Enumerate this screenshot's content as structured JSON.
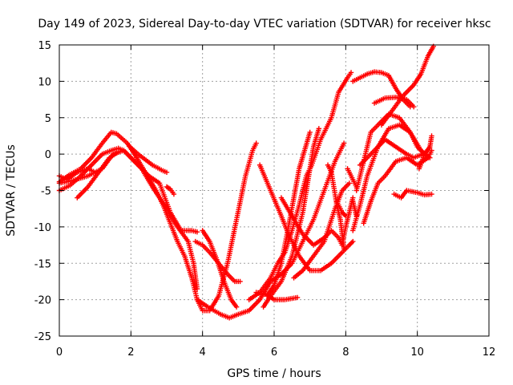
{
  "chart_data": {
    "type": "scatter",
    "title": "Day 149 of 2023, Sidereal Day-to-day VTEC variation (SDTVAR) for receiver hksc",
    "xlabel": "GPS time / hours",
    "ylabel": "SDTVAR / TECUs",
    "xlim": [
      0,
      12
    ],
    "ylim": [
      -25,
      15
    ],
    "xticks": [
      "0",
      "2",
      "4",
      "6",
      "8",
      "10",
      "12"
    ],
    "yticks": [
      "15",
      "10",
      "5",
      "0",
      "-5",
      "-10",
      "-15",
      "-20",
      "-25"
    ],
    "grid": true,
    "marker": "+",
    "color": "#ff0000",
    "series": [
      {
        "points": [
          [
            0,
            -5
          ],
          [
            0.3,
            -4.3
          ],
          [
            0.6,
            -3
          ],
          [
            0.9,
            -1.5
          ],
          [
            1.2,
            0
          ],
          [
            1.45,
            0.5
          ],
          [
            1.65,
            0.8
          ],
          [
            1.8,
            0.5
          ],
          [
            2.0,
            -0.5
          ],
          [
            2.3,
            -2
          ],
          [
            2.6,
            -4.5
          ],
          [
            2.8,
            -6
          ],
          [
            3.0,
            -7.5
          ],
          [
            3.3,
            -10
          ],
          [
            3.6,
            -12
          ],
          [
            3.75,
            -15
          ],
          [
            3.85,
            -18.5
          ]
        ]
      },
      {
        "points": [
          [
            0,
            -3.8
          ],
          [
            0.3,
            -2.8
          ],
          [
            0.6,
            -2
          ],
          [
            0.9,
            -0.5
          ],
          [
            1.2,
            1.5
          ],
          [
            1.45,
            3
          ],
          [
            1.6,
            2.8
          ],
          [
            1.9,
            1.5
          ],
          [
            2.1,
            0
          ],
          [
            2.4,
            -2.5
          ],
          [
            2.7,
            -5
          ],
          [
            2.9,
            -7
          ],
          [
            3.1,
            -9.5
          ],
          [
            3.3,
            -12
          ],
          [
            3.5,
            -14
          ],
          [
            3.7,
            -17
          ],
          [
            3.85,
            -20
          ],
          [
            4.0,
            -21.5
          ],
          [
            4.2,
            -21.5
          ],
          [
            4.45,
            -19.5
          ],
          [
            4.7,
            -15
          ],
          [
            4.95,
            -9
          ],
          [
            5.2,
            -3
          ],
          [
            5.4,
            0.5
          ],
          [
            5.5,
            1.5
          ]
        ]
      },
      {
        "points": [
          [
            0,
            -4
          ],
          [
            0.4,
            -3.6
          ],
          [
            0.8,
            -3
          ],
          [
            1.2,
            -2
          ],
          [
            1.5,
            0
          ],
          [
            1.8,
            0.5
          ],
          [
            2.1,
            -1
          ],
          [
            2.5,
            -3
          ],
          [
            2.8,
            -4
          ],
          [
            3.1,
            -8
          ],
          [
            3.4,
            -10.5
          ],
          [
            3.7,
            -10.5
          ],
          [
            3.85,
            -10.7
          ]
        ]
      },
      {
        "points": [
          [
            0,
            -3
          ],
          [
            0.2,
            -3.5
          ],
          [
            0.5,
            -2.5
          ],
          [
            0.8,
            -2
          ],
          [
            1.0,
            -2.5
          ]
        ]
      },
      {
        "points": [
          [
            0.5,
            -6
          ],
          [
            0.8,
            -4.5
          ],
          [
            1.1,
            -2.5
          ],
          [
            1.4,
            -0.5
          ],
          [
            1.65,
            0.3
          ]
        ]
      },
      {
        "points": [
          [
            1.95,
            1.1
          ],
          [
            2.2,
            0
          ],
          [
            2.6,
            -1.5
          ],
          [
            2.9,
            -2.3
          ],
          [
            3.0,
            -2.5
          ]
        ]
      },
      {
        "points": [
          [
            3.0,
            -4.5
          ],
          [
            3.1,
            -4.8
          ],
          [
            3.2,
            -5.5
          ]
        ]
      },
      {
        "points": [
          [
            3.8,
            -12
          ],
          [
            4.0,
            -12.5
          ],
          [
            4.2,
            -13.5
          ],
          [
            4.45,
            -15
          ],
          [
            4.7,
            -16.5
          ],
          [
            4.9,
            -17.5
          ],
          [
            5.05,
            -17.5
          ]
        ]
      },
      {
        "points": [
          [
            4.0,
            -10.5
          ],
          [
            4.2,
            -12
          ],
          [
            4.4,
            -14.5
          ],
          [
            4.6,
            -17.5
          ],
          [
            4.8,
            -20
          ],
          [
            4.95,
            -21
          ]
        ]
      },
      {
        "points": [
          [
            3.85,
            -20
          ],
          [
            4.15,
            -21
          ],
          [
            4.5,
            -22
          ],
          [
            4.75,
            -22.5
          ],
          [
            5.0,
            -22
          ],
          [
            5.3,
            -21.5
          ],
          [
            5.6,
            -20
          ],
          [
            5.9,
            -17.5
          ],
          [
            6.2,
            -16.5
          ],
          [
            6.5,
            -15
          ],
          [
            6.8,
            -12
          ],
          [
            7.1,
            -9
          ],
          [
            7.4,
            -5
          ],
          [
            7.7,
            -1
          ],
          [
            7.95,
            1.5
          ]
        ]
      },
      {
        "points": [
          [
            5.3,
            -20
          ],
          [
            5.6,
            -19
          ],
          [
            5.9,
            -17
          ],
          [
            6.1,
            -15
          ],
          [
            6.3,
            -13.5
          ],
          [
            6.5,
            -10.5
          ],
          [
            6.7,
            -7
          ],
          [
            6.9,
            -3
          ],
          [
            7.05,
            -1.5
          ],
          [
            7.3,
            2
          ],
          [
            7.6,
            5
          ],
          [
            7.8,
            8.5
          ],
          [
            8.05,
            10.5
          ],
          [
            8.15,
            11.2
          ]
        ]
      },
      {
        "points": [
          [
            5.7,
            -21
          ],
          [
            5.9,
            -19.5
          ],
          [
            6.2,
            -17.5
          ],
          [
            6.5,
            -14
          ],
          [
            6.8,
            -8
          ],
          [
            7.0,
            -2
          ],
          [
            7.1,
            1
          ],
          [
            7.25,
            3.5
          ]
        ]
      },
      {
        "points": [
          [
            5.8,
            -19.5
          ],
          [
            6.0,
            -18
          ],
          [
            6.2,
            -15
          ],
          [
            6.4,
            -10
          ],
          [
            6.55,
            -6
          ],
          [
            6.7,
            -2
          ],
          [
            6.85,
            0.5
          ],
          [
            7.0,
            3
          ]
        ]
      },
      {
        "points": [
          [
            5.5,
            -19
          ],
          [
            5.8,
            -19.3
          ],
          [
            6.0,
            -20
          ],
          [
            6.3,
            -20
          ],
          [
            6.65,
            -19.7
          ]
        ]
      },
      {
        "points": [
          [
            5.6,
            -1.5
          ],
          [
            5.9,
            -5
          ],
          [
            6.2,
            -8.5
          ],
          [
            6.4,
            -11
          ],
          [
            6.7,
            -14
          ],
          [
            7.0,
            -16
          ],
          [
            7.3,
            -16
          ],
          [
            7.6,
            -15
          ],
          [
            7.9,
            -13.5
          ],
          [
            8.1,
            -12.5
          ],
          [
            8.2,
            -12
          ]
        ]
      },
      {
        "points": [
          [
            6.2,
            -6
          ],
          [
            6.5,
            -8.5
          ],
          [
            6.8,
            -11
          ],
          [
            7.1,
            -12.5
          ],
          [
            7.4,
            -11.5
          ],
          [
            7.6,
            -10.5
          ],
          [
            7.8,
            -11.5
          ],
          [
            7.9,
            -12.5
          ]
        ]
      },
      {
        "points": [
          [
            6.55,
            -17
          ],
          [
            6.8,
            -16
          ],
          [
            7.1,
            -14
          ],
          [
            7.4,
            -12
          ],
          [
            7.7,
            -7.5
          ],
          [
            7.9,
            -5
          ],
          [
            8.1,
            -4
          ]
        ]
      },
      {
        "points": [
          [
            7.5,
            -1.5
          ],
          [
            7.6,
            -2.5
          ],
          [
            7.75,
            -7
          ],
          [
            7.85,
            -9
          ],
          [
            7.95,
            -13
          ]
        ]
      },
      {
        "points": [
          [
            7.75,
            -6.5
          ],
          [
            7.9,
            -8
          ],
          [
            8.0,
            -8.5
          ]
        ]
      },
      {
        "points": [
          [
            7.9,
            -12.5
          ],
          [
            8.0,
            -10
          ],
          [
            8.1,
            -8
          ],
          [
            8.2,
            -6
          ]
        ]
      },
      {
        "points": [
          [
            8.2,
            -6.5
          ],
          [
            8.3,
            -8.5
          ]
        ]
      },
      {
        "points": [
          [
            8.2,
            10
          ],
          [
            8.4,
            10.5
          ],
          [
            8.6,
            11
          ],
          [
            8.8,
            11.3
          ],
          [
            9.0,
            11.2
          ],
          [
            9.2,
            10.8
          ],
          [
            9.4,
            9
          ],
          [
            9.6,
            7.5
          ],
          [
            9.8,
            6.5
          ]
        ]
      },
      {
        "points": [
          [
            8.05,
            -2
          ],
          [
            8.2,
            -3.5
          ],
          [
            8.3,
            -4.5
          ]
        ]
      },
      {
        "points": [
          [
            8.2,
            -10.5
          ],
          [
            8.4,
            -7
          ],
          [
            8.6,
            -3
          ],
          [
            8.9,
            1
          ],
          [
            9.2,
            3.5
          ],
          [
            9.5,
            4
          ],
          [
            9.8,
            3
          ],
          [
            10.0,
            1
          ],
          [
            10.3,
            -0.5
          ]
        ]
      },
      {
        "points": [
          [
            8.3,
            -5
          ],
          [
            8.5,
            -1
          ],
          [
            8.7,
            3
          ],
          [
            8.9,
            4
          ],
          [
            9.2,
            5.5
          ],
          [
            9.5,
            5
          ],
          [
            9.8,
            3
          ],
          [
            10.1,
            0.5
          ],
          [
            10.35,
            -0.5
          ]
        ]
      },
      {
        "points": [
          [
            8.5,
            -9.5
          ],
          [
            8.7,
            -6.5
          ],
          [
            8.9,
            -4
          ],
          [
            9.1,
            -3
          ],
          [
            9.4,
            -1
          ],
          [
            9.7,
            -0.5
          ],
          [
            10.0,
            -1.5
          ],
          [
            10.3,
            -0.5
          ],
          [
            10.4,
            0.5
          ]
        ]
      },
      {
        "points": [
          [
            8.8,
            7
          ],
          [
            9.1,
            7.7
          ],
          [
            9.4,
            7.8
          ],
          [
            9.7,
            7.5
          ],
          [
            9.9,
            6.5
          ]
        ]
      },
      {
        "points": [
          [
            8.4,
            -1.5
          ],
          [
            8.6,
            -0.5
          ],
          [
            8.8,
            0.5
          ],
          [
            9.1,
            2
          ],
          [
            9.4,
            1
          ],
          [
            9.7,
            0
          ],
          [
            9.9,
            -0.5
          ],
          [
            10.15,
            0
          ]
        ]
      },
      {
        "points": [
          [
            9.0,
            4
          ],
          [
            9.3,
            6
          ],
          [
            9.6,
            8
          ],
          [
            9.9,
            9.5
          ],
          [
            10.1,
            11
          ],
          [
            10.3,
            13.5
          ],
          [
            10.45,
            14.8
          ]
        ]
      },
      {
        "points": [
          [
            9.35,
            -5.5
          ],
          [
            9.55,
            -6
          ],
          [
            9.7,
            -5
          ],
          [
            10.0,
            -5.3
          ],
          [
            10.2,
            -5.6
          ],
          [
            10.4,
            -5.5
          ]
        ]
      },
      {
        "points": [
          [
            10.05,
            -2
          ],
          [
            10.2,
            0
          ],
          [
            10.35,
            1
          ],
          [
            10.4,
            2.5
          ]
        ]
      }
    ]
  }
}
